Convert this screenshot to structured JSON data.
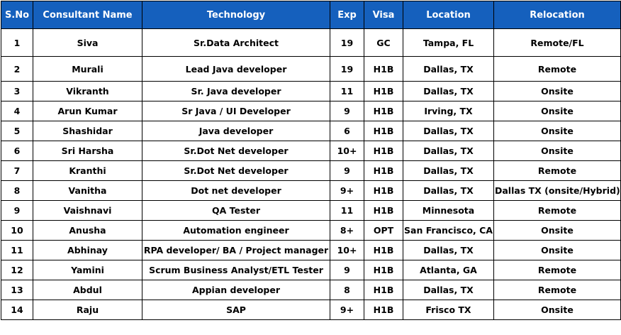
{
  "table": {
    "accent_color": "#1560bd",
    "headers": [
      "S.No",
      "Consultant Name",
      "Technology",
      "Exp",
      "Visa",
      "Location",
      "Relocation"
    ],
    "rows": [
      [
        "1",
        "Siva",
        "Sr.Data Architect",
        "19",
        "GC",
        "Tampa, FL",
        "Remote/FL"
      ],
      [
        "2",
        "Murali",
        "Lead Java developer",
        "19",
        "H1B",
        "Dallas, TX",
        "Remote"
      ],
      [
        "3",
        "Vikranth",
        "Sr. Java developer",
        "11",
        "H1B",
        "Dallas, TX",
        "Onsite"
      ],
      [
        "4",
        "Arun Kumar",
        "Sr Java / UI Developer",
        "9",
        "H1B",
        "Irving, TX",
        "Onsite"
      ],
      [
        "5",
        "Shashidar",
        "Java developer",
        "6",
        "H1B",
        "Dallas, TX",
        "Onsite"
      ],
      [
        "6",
        "Sri Harsha",
        "Sr.Dot Net developer",
        "10+",
        "H1B",
        "Dallas, TX",
        "Onsite"
      ],
      [
        "7",
        "Kranthi",
        "Sr.Dot Net developer",
        "9",
        "H1B",
        "Dallas, TX",
        "Remote"
      ],
      [
        "8",
        "Vanitha",
        "Dot net developer",
        "9+",
        "H1B",
        "Dallas, TX",
        "Dallas TX (onsite/Hybrid)"
      ],
      [
        "9",
        "Vaishnavi",
        "QA Tester",
        "11",
        "H1B",
        "Minnesota",
        "Remote"
      ],
      [
        "10",
        "Anusha",
        "Automation engineer",
        "8+",
        "OPT",
        "San Francisco, CA",
        "Onsite"
      ],
      [
        "11",
        "Abhinay",
        "RPA developer/ BA / Project manager",
        "10+",
        "H1B",
        "Dallas, TX",
        "Onsite"
      ],
      [
        "12",
        "Yamini",
        "Scrum Business Analyst/ETL Tester",
        "9",
        "H1B",
        "Atlanta, GA",
        "Remote"
      ],
      [
        "13",
        "Abdul",
        "Appian developer",
        "8",
        "H1B",
        "Dallas, TX",
        "Remote"
      ],
      [
        "14",
        "Raju",
        "SAP",
        "9+",
        "H1B",
        "Frisco TX",
        "Onsite"
      ]
    ]
  }
}
